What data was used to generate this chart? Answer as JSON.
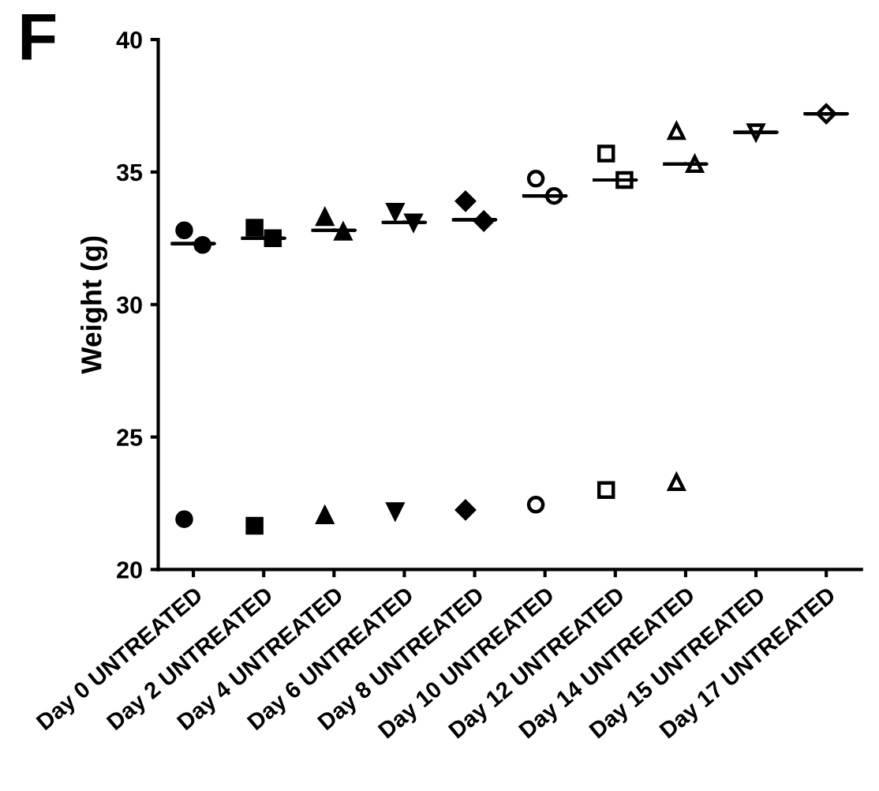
{
  "chart_data": {
    "type": "scatter",
    "ylabel": "Weight (g)",
    "annotations": [
      "F"
    ],
    "categories": [
      "Day 0 UNTREATED",
      "Day 2 UNTREATED",
      "Day 4 UNTREATED",
      "Day 6 UNTREATED",
      "Day 8 UNTREATED",
      "Day 10 UNTREATED",
      "Day 12 UNTREATED",
      "Day 14 UNTREATED",
      "Day 15 UNTREATED",
      "Day 17 UNTREATED"
    ],
    "series": [
      {
        "color": "#000000",
        "marker": "circle",
        "x": [
          "Day 0 UNTREATED",
          "Day 0 UNTREATED",
          "Day 0 UNTREATED"
        ],
        "values": [
          32.8,
          32.25,
          21.9
        ]
      },
      {
        "color": "#000000",
        "marker": "square",
        "x": [
          "Day 2 UNTREATED",
          "Day 2 UNTREATED",
          "Day 2 UNTREATED"
        ],
        "values": [
          32.9,
          32.5,
          21.65
        ]
      },
      {
        "color": "#000000",
        "marker": "triangle",
        "x": [
          "Day 4 UNTREATED",
          "Day 4 UNTREATED",
          "Day 4 UNTREATED"
        ],
        "values": [
          33.3,
          32.75,
          22.05
        ]
      },
      {
        "color": "#000000",
        "marker": "triangle",
        "x": [
          "Day 6 UNTREATED",
          "Day 6 UNTREATED",
          "Day 6 UNTREATED"
        ],
        "values": [
          33.5,
          33.1,
          22.2
        ]
      },
      {
        "color": "#000000",
        "marker": "diamond",
        "x": [
          "Day 8 UNTREATED",
          "Day 8 UNTREATED",
          "Day 8 UNTREATED"
        ],
        "values": [
          33.9,
          33.15,
          22.25
        ]
      },
      {
        "color": "#000000",
        "marker": "circle",
        "x": [
          "Day 10 UNTREATED",
          "Day 10 UNTREATED",
          "Day 10 UNTREATED"
        ],
        "values": [
          34.75,
          34.1,
          22.45
        ]
      },
      {
        "color": "#000000",
        "marker": "square",
        "x": [
          "Day 12 UNTREATED",
          "Day 12 UNTREATED",
          "Day 12 UNTREATED"
        ],
        "values": [
          35.7,
          34.7,
          23.0
        ]
      },
      {
        "color": "#000000",
        "marker": "triangle",
        "x": [
          "Day 14 UNTREATED",
          "Day 14 UNTREATED",
          "Day 14 UNTREATED"
        ],
        "values": [
          36.55,
          35.3,
          23.3
        ]
      },
      {
        "color": "#000000",
        "marker": "triangle",
        "x": [
          "Day 15 UNTREATED"
        ],
        "values": [
          36.5
        ]
      },
      {
        "color": "#000000",
        "marker": "diamond",
        "x": [
          "Day 17 UNTREATED"
        ],
        "values": [
          37.2
        ]
      },
      {
        "type": "box",
        "color": "#000000",
        "boxes": [
          {
            "low": 32.3,
            "q1": 32.3,
            "median": 32.3,
            "q3": 32.3,
            "high": 32.3
          },
          {
            "low": 32.5,
            "q1": 32.5,
            "median": 32.5,
            "q3": 32.5,
            "high": 32.5
          },
          {
            "low": 32.8,
            "q1": 32.8,
            "median": 32.8,
            "q3": 32.8,
            "high": 32.8
          },
          {
            "low": 33.1,
            "q1": 33.1,
            "median": 33.1,
            "q3": 33.1,
            "high": 33.1
          },
          {
            "low": 33.2,
            "q1": 33.2,
            "median": 33.2,
            "q3": 33.2,
            "high": 33.2
          },
          {
            "low": 34.1,
            "q1": 34.1,
            "median": 34.1,
            "q3": 34.1,
            "high": 34.1
          },
          {
            "low": 34.7,
            "q1": 34.7,
            "median": 34.7,
            "q3": 34.7,
            "high": 34.7
          },
          {
            "low": 35.3,
            "q1": 35.3,
            "median": 35.3,
            "q3": 35.3,
            "high": 35.3
          },
          {
            "low": 36.5,
            "q1": 36.5,
            "median": 36.5,
            "q3": 36.5,
            "high": 36.5
          },
          {
            "low": 37.2,
            "q1": 37.2,
            "median": 37.2,
            "q3": 37.2,
            "high": 37.2
          }
        ]
      }
    ],
    "ylim": [
      20,
      40
    ],
    "yticks": [
      20,
      25,
      30,
      35,
      40
    ],
    "grid": false,
    "legend": false
  }
}
